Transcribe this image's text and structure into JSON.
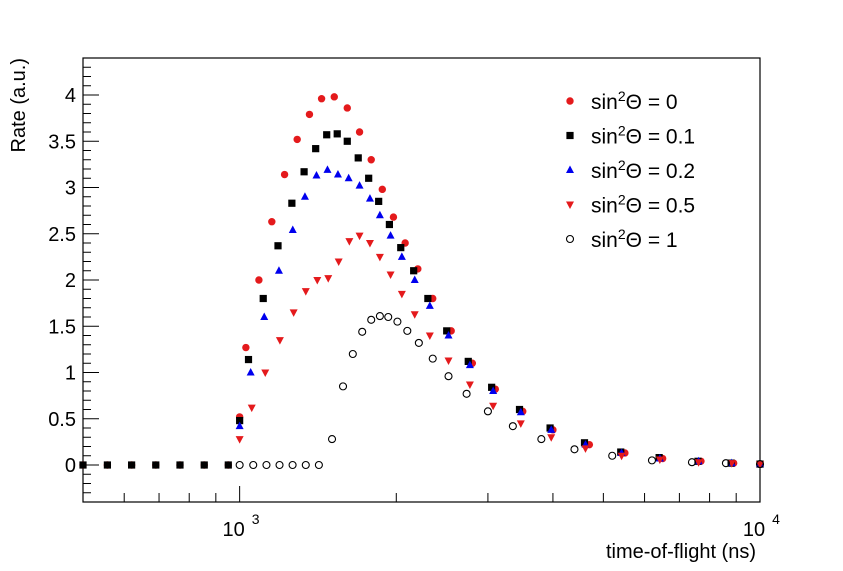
{
  "chart_data": {
    "type": "scatter",
    "title": "",
    "xlabel": "time-of-flight (ns)",
    "ylabel": "Rate (a.u.)",
    "xscale": "log",
    "xlim": [
      500,
      10000
    ],
    "ylim": [
      -0.4,
      4.4
    ],
    "grid": false,
    "legend_position": "top-right",
    "y_ticks": [
      {
        "value": 0,
        "label": "0"
      },
      {
        "value": 0.5,
        "label": "0.5"
      },
      {
        "value": 1,
        "label": "1"
      },
      {
        "value": 1.5,
        "label": "1.5"
      },
      {
        "value": 2,
        "label": "2"
      },
      {
        "value": 2.5,
        "label": "2.5"
      },
      {
        "value": 3,
        "label": "3"
      },
      {
        "value": 3.5,
        "label": "3.5"
      },
      {
        "value": 4,
        "label": "4"
      }
    ],
    "x_ticks": [
      {
        "value": 1000,
        "base": "10",
        "exp": "3"
      },
      {
        "value": 10000,
        "base": "10",
        "exp": "4"
      }
    ],
    "series": [
      {
        "name": "sin²Θ = 0",
        "label_prefix": "sin",
        "label_sup": "2",
        "label_suffix": "Θ = 0",
        "marker": "circle-filled",
        "color": "#e41a1c",
        "x": [
          500,
          557,
          620,
          690,
          768,
          855,
          951,
          1000,
          1028,
          1089,
          1153,
          1220,
          1290,
          1362,
          1437,
          1520,
          1610,
          1700,
          1790,
          1880,
          1975,
          2080,
          2200,
          2350,
          2550,
          2800,
          3100,
          3500,
          4000,
          4700,
          5500,
          6500,
          7700,
          8900,
          10000
        ],
        "y": [
          0,
          0,
          0,
          0,
          0,
          0,
          0,
          0.52,
          1.27,
          2.0,
          2.63,
          3.14,
          3.52,
          3.79,
          3.96,
          3.98,
          3.86,
          3.6,
          3.3,
          2.98,
          2.68,
          2.4,
          2.12,
          1.8,
          1.45,
          1.1,
          0.82,
          0.58,
          0.38,
          0.22,
          0.13,
          0.07,
          0.04,
          0.02,
          0.01
        ]
      },
      {
        "name": "sin²Θ = 0.1",
        "label_prefix": "sin",
        "label_sup": "2",
        "label_suffix": "Θ = 0.1",
        "marker": "square",
        "color": "#000000",
        "x": [
          500,
          557,
          620,
          690,
          768,
          855,
          951,
          1000,
          1040,
          1110,
          1185,
          1260,
          1330,
          1400,
          1470,
          1540,
          1610,
          1690,
          1770,
          1850,
          1940,
          2040,
          2160,
          2300,
          2500,
          2750,
          3050,
          3450,
          3950,
          4600,
          5400,
          6400,
          7600,
          8800,
          10000
        ],
        "y": [
          0,
          0,
          0,
          0,
          0,
          0,
          0,
          0.48,
          1.14,
          1.8,
          2.37,
          2.83,
          3.17,
          3.42,
          3.57,
          3.58,
          3.5,
          3.32,
          3.1,
          2.85,
          2.6,
          2.35,
          2.1,
          1.8,
          1.45,
          1.12,
          0.84,
          0.6,
          0.4,
          0.24,
          0.14,
          0.08,
          0.04,
          0.02,
          0.01
        ]
      },
      {
        "name": "sin²Θ = 0.2",
        "label_prefix": "sin",
        "label_sup": "2",
        "label_suffix": "Θ = 0.2",
        "marker": "triangle-up",
        "color": "#0000ee",
        "x": [
          1000,
          1050,
          1115,
          1190,
          1265,
          1335,
          1405,
          1475,
          1545,
          1620,
          1700,
          1780,
          1860,
          1950,
          2050,
          2170,
          2320,
          2520,
          2770,
          3070,
          3470,
          3970,
          4620,
          5420,
          6420,
          7620,
          8820,
          10000
        ],
        "y": [
          0.42,
          1.0,
          1.6,
          2.1,
          2.54,
          2.9,
          3.13,
          3.19,
          3.14,
          3.1,
          3.02,
          2.88,
          2.7,
          2.48,
          2.25,
          2.0,
          1.72,
          1.4,
          1.08,
          0.8,
          0.57,
          0.38,
          0.22,
          0.13,
          0.07,
          0.04,
          0.02,
          0.01
        ]
      },
      {
        "name": "sin²Θ = 0.5",
        "label_prefix": "sin",
        "label_sup": "2",
        "label_suffix": "Θ = 0.5",
        "marker": "triangle-down",
        "color": "#e41a1c",
        "x": [
          1000,
          1055,
          1120,
          1195,
          1270,
          1340,
          1410,
          1480,
          1550,
          1625,
          1700,
          1780,
          1860,
          1950,
          2050,
          2170,
          2320,
          2520,
          2770,
          3070,
          3470,
          3970,
          4620,
          5420,
          6420,
          7620,
          8820,
          10000
        ],
        "y": [
          0.28,
          0.62,
          1.0,
          1.35,
          1.65,
          1.88,
          2.0,
          2.02,
          2.2,
          2.42,
          2.48,
          2.4,
          2.25,
          2.06,
          1.85,
          1.63,
          1.4,
          1.13,
          0.87,
          0.64,
          0.45,
          0.3,
          0.18,
          0.1,
          0.06,
          0.03,
          0.02,
          0.01
        ]
      },
      {
        "name": "sin²Θ = 1",
        "label_prefix": "sin",
        "label_sup": "2",
        "label_suffix": "Θ = 1",
        "marker": "circle-open",
        "color": "#000000",
        "x": [
          1000,
          1062,
          1126,
          1193,
          1264,
          1340,
          1420,
          1505,
          1580,
          1650,
          1720,
          1790,
          1860,
          1930,
          2010,
          2100,
          2210,
          2350,
          2520,
          2730,
          3000,
          3350,
          3800,
          4400,
          5200,
          6200,
          7400,
          8600,
          10000
        ],
        "y": [
          0,
          0,
          0,
          0,
          0,
          0,
          0,
          0.28,
          0.85,
          1.2,
          1.44,
          1.57,
          1.61,
          1.6,
          1.55,
          1.45,
          1.32,
          1.15,
          0.96,
          0.77,
          0.58,
          0.42,
          0.28,
          0.17,
          0.1,
          0.05,
          0.03,
          0.02,
          0.01
        ]
      }
    ]
  }
}
